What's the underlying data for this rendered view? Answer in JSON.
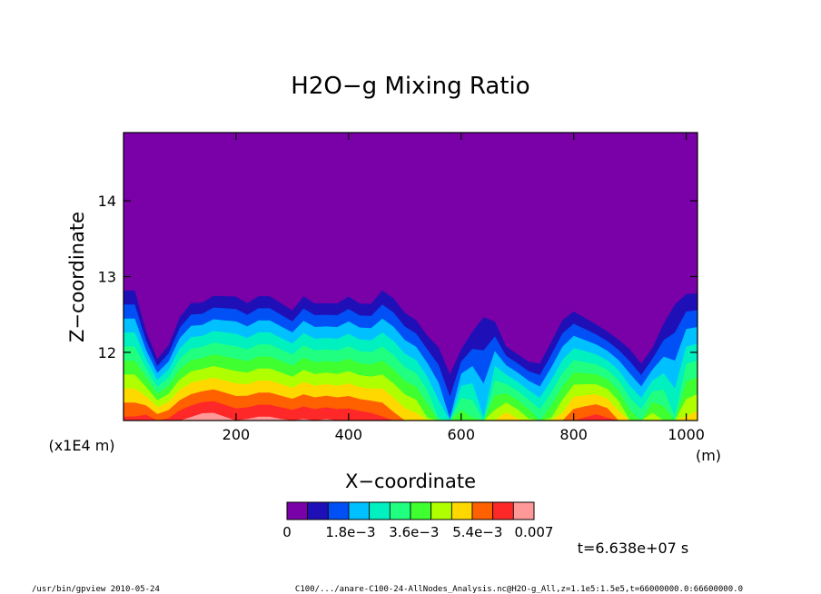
{
  "chart_data": {
    "type": "heatmap",
    "title": "H2O−g Mixing Ratio",
    "xlabel": "X−coordinate",
    "xunit": "(m)",
    "ylabel": "Z−coordinate",
    "yunit": "(x1E4 m)",
    "xlim": [
      0,
      1020
    ],
    "ylim": [
      11.1,
      14.9
    ],
    "xticks": [
      "200",
      "400",
      "600",
      "800",
      "1000"
    ],
    "xtick_values": [
      200,
      400,
      600,
      800,
      1000
    ],
    "yticks": [
      "12",
      "13",
      "14"
    ],
    "ytick_values": [
      12,
      13,
      14
    ],
    "colorbar": {
      "min": 0,
      "max": 0.007,
      "levels": 12,
      "colors": [
        "#7a00a8",
        "#1e10b6",
        "#0050f5",
        "#00c0ff",
        "#00f0c0",
        "#20ff80",
        "#40ff30",
        "#b0ff00",
        "#ffd800",
        "#ff6000",
        "#ff2828",
        "#ff9898"
      ],
      "labels": [
        "0",
        "1.8e−3",
        "3.6e−3",
        "5.4e−3",
        "0.007"
      ]
    },
    "band_offsets": [
      0,
      0.12,
      0.22,
      0.32,
      0.4,
      0.48,
      0.56,
      0.64,
      0.72,
      0.8,
      0.88,
      0.96
    ],
    "columns_x": [
      0,
      20,
      40,
      60,
      80,
      100,
      120,
      140,
      160,
      180,
      200,
      220,
      240,
      260,
      280,
      300,
      320,
      340,
      360,
      380,
      400,
      420,
      440,
      460,
      480,
      500,
      520,
      540,
      560,
      580,
      600,
      620,
      640,
      660,
      680,
      700,
      720,
      740,
      760,
      780,
      800,
      820,
      840,
      860,
      880,
      900,
      920,
      940,
      960,
      980,
      1000,
      1020
    ],
    "moist_top_z": [
      13.0,
      13.0,
      12.4,
      12.0,
      12.2,
      12.6,
      12.8,
      12.8,
      12.9,
      12.9,
      12.9,
      12.8,
      12.9,
      12.9,
      12.8,
      12.7,
      12.9,
      12.8,
      12.8,
      12.8,
      12.9,
      12.8,
      12.8,
      13.0,
      12.9,
      12.7,
      12.6,
      12.4,
      12.3,
      12.0,
      12.2,
      12.5,
      12.9,
      12.6,
      12.2,
      12.1,
      12.0,
      12.0,
      12.3,
      12.6,
      12.7,
      12.6,
      12.5,
      12.4,
      12.3,
      12.2,
      12.0,
      12.2,
      12.6,
      13.0,
      13.0,
      13.0
    ],
    "moist_base_value": 0.0068,
    "moist_base_values": [
      0.006,
      0.006,
      0.0062,
      0.0058,
      0.006,
      0.0064,
      0.0066,
      0.0068,
      0.0068,
      0.0066,
      0.0064,
      0.0065,
      0.0066,
      0.0066,
      0.0065,
      0.0064,
      0.0065,
      0.0064,
      0.0065,
      0.0064,
      0.0064,
      0.0063,
      0.0062,
      0.006,
      0.0056,
      0.0052,
      0.005,
      0.0042,
      0.003,
      0.0018,
      0.004,
      0.0036,
      0.0024,
      0.0045,
      0.0052,
      0.0048,
      0.0042,
      0.0035,
      0.0042,
      0.005,
      0.0058,
      0.006,
      0.0062,
      0.006,
      0.0052,
      0.004,
      0.0035,
      0.0045,
      0.004,
      0.003,
      0.0048,
      0.005
    ],
    "time_label": "t=6.638e+07 s"
  },
  "footer": {
    "left": "/usr/bin/gpview  2010-05-24",
    "right": "C100/.../anare-C100-24-AllNodes_Analysis.nc@H2O-g_All,z=1.1e5:1.5e5,t=66000000.0:66600000.0"
  },
  "colors": {
    "background": "#ffffff",
    "frame": "#000000"
  }
}
